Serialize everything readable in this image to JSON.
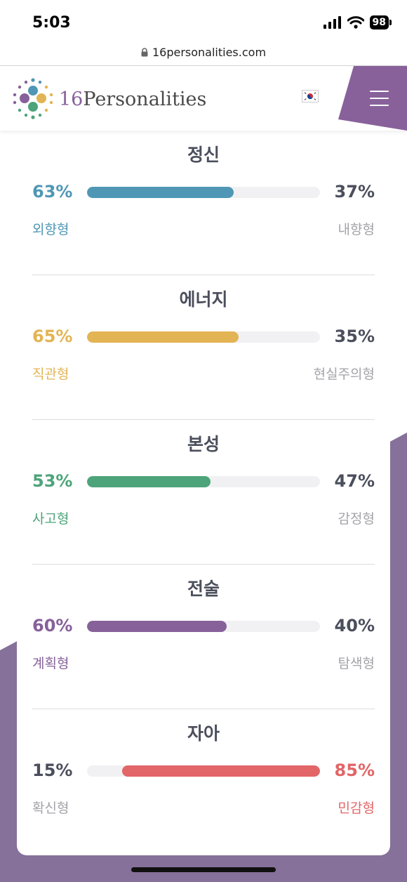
{
  "status_bar": {
    "time": "5:03",
    "battery": "98"
  },
  "browser": {
    "url": "16personalities.com"
  },
  "header": {
    "logo_number": "16",
    "logo_word": "Personalities",
    "brand_color": "#88619a"
  },
  "traits": [
    {
      "title": "정신",
      "left_percent": "63%",
      "right_percent": "37%",
      "left_label": "외향형",
      "right_label": "내향형",
      "fill": 0.63,
      "fill_side": "left",
      "color": "#4f97b5"
    },
    {
      "title": "에너지",
      "left_percent": "65%",
      "right_percent": "35%",
      "left_label": "직관형",
      "right_label": "현실주의형",
      "fill": 0.65,
      "fill_side": "left",
      "color": "#e3b454"
    },
    {
      "title": "본성",
      "left_percent": "53%",
      "right_percent": "47%",
      "left_label": "사고형",
      "right_label": "감정형",
      "fill": 0.53,
      "fill_side": "left",
      "color": "#4ea47a"
    },
    {
      "title": "전술",
      "left_percent": "60%",
      "right_percent": "40%",
      "left_label": "계획형",
      "right_label": "탐색형",
      "fill": 0.6,
      "fill_side": "left",
      "color": "#86619a"
    },
    {
      "title": "자아",
      "left_percent": "15%",
      "right_percent": "85%",
      "left_label": "확신형",
      "right_label": "민감형",
      "fill": 0.85,
      "fill_side": "right",
      "color": "#e26567"
    }
  ]
}
